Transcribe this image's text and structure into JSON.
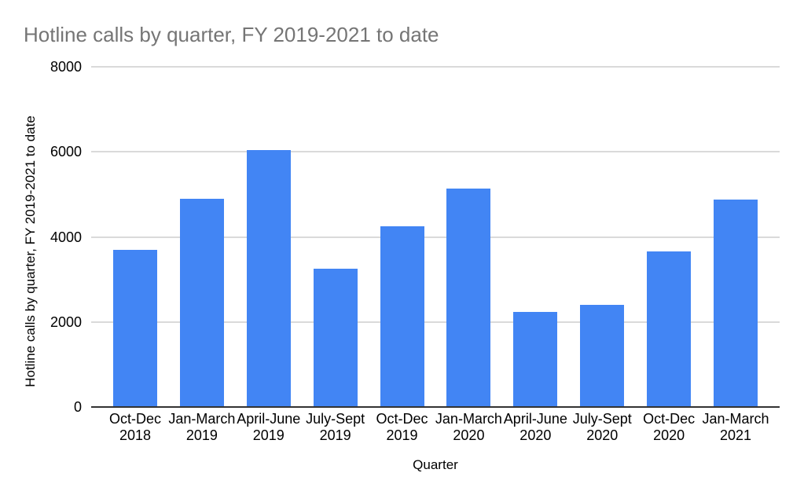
{
  "chart_data": {
    "type": "bar",
    "title": "Hotline calls by quarter, FY 2019-2021 to date",
    "xlabel": "Quarter",
    "ylabel": "Hotline calls by quarter, FY 2019-2021 to date",
    "categories": [
      "Oct-Dec 2018",
      "Jan-March 2019",
      "April-June 2019",
      "July-Sept 2019",
      "Oct-Dec 2019",
      "Jan-March 2020",
      "April-June 2020",
      "July-Sept 2020",
      "Oct-Dec 2020",
      "Jan-March 2021"
    ],
    "category_lines": [
      [
        "Oct-Dec",
        "2018"
      ],
      [
        "Jan-March",
        "2019"
      ],
      [
        "April-June",
        "2019"
      ],
      [
        "July-Sept",
        "2019"
      ],
      [
        "Oct-Dec",
        "2019"
      ],
      [
        "Jan-March",
        "2020"
      ],
      [
        "April-June",
        "2020"
      ],
      [
        "July-Sept",
        "2020"
      ],
      [
        "Oct-Dec",
        "2020"
      ],
      [
        "Jan-March",
        "2021"
      ]
    ],
    "values": [
      3700,
      4890,
      6050,
      3250,
      4250,
      5140,
      2230,
      2400,
      3650,
      4870
    ],
    "ylim": [
      0,
      8000
    ],
    "yticks": [
      0,
      2000,
      4000,
      6000,
      8000
    ],
    "grid": true,
    "legend": "none",
    "colors": {
      "bar": "#4285f4",
      "title_text": "#757575",
      "axis_text": "#000000",
      "gridline": "#dadada",
      "baseline": "#333333",
      "background": "#ffffff"
    }
  }
}
